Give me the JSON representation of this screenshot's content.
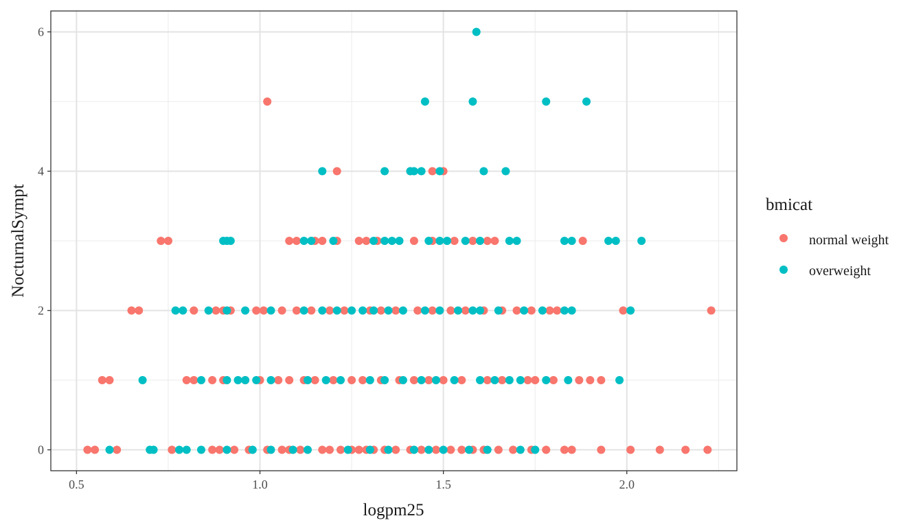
{
  "chart_data": {
    "type": "scatter",
    "xlabel": "logpm25",
    "ylabel": "NocturnalSympt",
    "xlim": [
      0.43,
      2.3
    ],
    "ylim": [
      -0.3,
      6.3
    ],
    "x_ticks": [
      0.5,
      1.0,
      1.5,
      2.0
    ],
    "x_tick_labels": [
      "0.5",
      "1.0",
      "1.5",
      "2.0"
    ],
    "y_ticks": [
      0,
      2,
      4,
      6
    ],
    "y_tick_labels": [
      "0",
      "2",
      "4",
      "6"
    ],
    "x_minor_grid": [
      0.75,
      1.25,
      1.75,
      2.25
    ],
    "y_minor_grid": [
      1,
      3,
      5
    ],
    "grid": true,
    "legend": {
      "title": "bmicat",
      "position": "right",
      "entries": [
        {
          "label": "normal weight",
          "color": "#F8766D"
        },
        {
          "label": "overweight",
          "color": "#00BFC4"
        }
      ]
    },
    "series": [
      {
        "name": "normal weight",
        "color": "#F8766D",
        "points": [
          [
            0.53,
            0
          ],
          [
            0.55,
            0
          ],
          [
            0.61,
            0
          ],
          [
            0.76,
            0
          ],
          [
            0.87,
            0
          ],
          [
            0.89,
            0
          ],
          [
            0.93,
            0
          ],
          [
            0.97,
            0
          ],
          [
            1.02,
            0
          ],
          [
            1.06,
            0
          ],
          [
            1.08,
            0
          ],
          [
            1.11,
            0
          ],
          [
            1.17,
            0
          ],
          [
            1.19,
            0
          ],
          [
            1.22,
            0
          ],
          [
            1.25,
            0
          ],
          [
            1.27,
            0
          ],
          [
            1.29,
            0
          ],
          [
            1.31,
            0
          ],
          [
            1.34,
            0
          ],
          [
            1.37,
            0
          ],
          [
            1.41,
            0
          ],
          [
            1.44,
            0
          ],
          [
            1.48,
            0
          ],
          [
            1.52,
            0
          ],
          [
            1.55,
            0
          ],
          [
            1.58,
            0
          ],
          [
            1.61,
            0
          ],
          [
            1.65,
            0
          ],
          [
            1.69,
            0
          ],
          [
            1.74,
            0
          ],
          [
            1.78,
            0
          ],
          [
            1.83,
            0
          ],
          [
            1.85,
            0
          ],
          [
            1.93,
            0
          ],
          [
            2.01,
            0
          ],
          [
            2.09,
            0
          ],
          [
            2.16,
            0
          ],
          [
            2.22,
            0
          ],
          [
            0.57,
            1
          ],
          [
            0.59,
            1
          ],
          [
            0.8,
            1
          ],
          [
            0.82,
            1
          ],
          [
            0.87,
            1
          ],
          [
            0.9,
            1
          ],
          [
            0.96,
            1
          ],
          [
            1.0,
            1
          ],
          [
            1.05,
            1
          ],
          [
            1.08,
            1
          ],
          [
            1.12,
            1
          ],
          [
            1.15,
            1
          ],
          [
            1.2,
            1
          ],
          [
            1.25,
            1
          ],
          [
            1.28,
            1
          ],
          [
            1.33,
            1
          ],
          [
            1.38,
            1
          ],
          [
            1.42,
            1
          ],
          [
            1.46,
            1
          ],
          [
            1.5,
            1
          ],
          [
            1.55,
            1
          ],
          [
            1.62,
            1
          ],
          [
            1.66,
            1
          ],
          [
            1.73,
            1
          ],
          [
            1.75,
            1
          ],
          [
            1.8,
            1
          ],
          [
            1.87,
            1
          ],
          [
            1.9,
            1
          ],
          [
            1.93,
            1
          ],
          [
            0.65,
            2
          ],
          [
            0.67,
            2
          ],
          [
            0.82,
            2
          ],
          [
            0.88,
            2
          ],
          [
            0.9,
            2
          ],
          [
            0.92,
            2
          ],
          [
            0.99,
            2
          ],
          [
            1.01,
            2
          ],
          [
            1.06,
            2
          ],
          [
            1.1,
            2
          ],
          [
            1.14,
            2
          ],
          [
            1.19,
            2
          ],
          [
            1.23,
            2
          ],
          [
            1.3,
            2
          ],
          [
            1.33,
            2
          ],
          [
            1.37,
            2
          ],
          [
            1.43,
            2
          ],
          [
            1.47,
            2
          ],
          [
            1.52,
            2
          ],
          [
            1.56,
            2
          ],
          [
            1.61,
            2
          ],
          [
            1.66,
            2
          ],
          [
            1.7,
            2
          ],
          [
            1.74,
            2
          ],
          [
            1.79,
            2
          ],
          [
            1.81,
            2
          ],
          [
            1.99,
            2
          ],
          [
            2.23,
            2
          ],
          [
            0.73,
            3
          ],
          [
            0.75,
            3
          ],
          [
            1.08,
            3
          ],
          [
            1.1,
            3
          ],
          [
            1.15,
            3
          ],
          [
            1.17,
            3
          ],
          [
            1.21,
            3
          ],
          [
            1.27,
            3
          ],
          [
            1.29,
            3
          ],
          [
            1.32,
            3
          ],
          [
            1.42,
            3
          ],
          [
            1.47,
            3
          ],
          [
            1.53,
            3
          ],
          [
            1.58,
            3
          ],
          [
            1.62,
            3
          ],
          [
            1.64,
            3
          ],
          [
            1.88,
            3
          ],
          [
            1.21,
            4
          ],
          [
            1.41,
            4
          ],
          [
            1.47,
            4
          ],
          [
            1.5,
            4
          ],
          [
            1.02,
            5
          ]
        ]
      },
      {
        "name": "overweight",
        "color": "#00BFC4",
        "points": [
          [
            0.59,
            0
          ],
          [
            0.7,
            0
          ],
          [
            0.71,
            0
          ],
          [
            0.78,
            0
          ],
          [
            0.8,
            0
          ],
          [
            0.84,
            0
          ],
          [
            0.91,
            0
          ],
          [
            0.98,
            0
          ],
          [
            1.03,
            0
          ],
          [
            1.09,
            0
          ],
          [
            1.13,
            0
          ],
          [
            1.24,
            0
          ],
          [
            1.3,
            0
          ],
          [
            1.35,
            0
          ],
          [
            1.42,
            0
          ],
          [
            1.46,
            0
          ],
          [
            1.5,
            0
          ],
          [
            1.57,
            0
          ],
          [
            1.62,
            0
          ],
          [
            1.71,
            0
          ],
          [
            1.75,
            0
          ],
          [
            0.68,
            1
          ],
          [
            0.84,
            1
          ],
          [
            0.91,
            1
          ],
          [
            0.94,
            1
          ],
          [
            0.96,
            1
          ],
          [
            0.99,
            1
          ],
          [
            1.03,
            1
          ],
          [
            1.13,
            1
          ],
          [
            1.18,
            1
          ],
          [
            1.22,
            1
          ],
          [
            1.3,
            1
          ],
          [
            1.34,
            1
          ],
          [
            1.39,
            1
          ],
          [
            1.44,
            1
          ],
          [
            1.48,
            1
          ],
          [
            1.53,
            1
          ],
          [
            1.6,
            1
          ],
          [
            1.64,
            1
          ],
          [
            1.68,
            1
          ],
          [
            1.71,
            1
          ],
          [
            1.78,
            1
          ],
          [
            1.84,
            1
          ],
          [
            1.98,
            1
          ],
          [
            0.77,
            2
          ],
          [
            0.79,
            2
          ],
          [
            0.86,
            2
          ],
          [
            0.91,
            2
          ],
          [
            0.96,
            2
          ],
          [
            1.03,
            2
          ],
          [
            1.12,
            2
          ],
          [
            1.17,
            2
          ],
          [
            1.21,
            2
          ],
          [
            1.25,
            2
          ],
          [
            1.28,
            2
          ],
          [
            1.31,
            2
          ],
          [
            1.35,
            2
          ],
          [
            1.39,
            2
          ],
          [
            1.45,
            2
          ],
          [
            1.49,
            2
          ],
          [
            1.54,
            2
          ],
          [
            1.58,
            2
          ],
          [
            1.6,
            2
          ],
          [
            1.65,
            2
          ],
          [
            1.72,
            2
          ],
          [
            1.77,
            2
          ],
          [
            1.83,
            2
          ],
          [
            1.85,
            2
          ],
          [
            2.01,
            2
          ],
          [
            0.9,
            3
          ],
          [
            0.91,
            3
          ],
          [
            0.92,
            3
          ],
          [
            1.12,
            3
          ],
          [
            1.14,
            3
          ],
          [
            1.2,
            3
          ],
          [
            1.31,
            3
          ],
          [
            1.34,
            3
          ],
          [
            1.36,
            3
          ],
          [
            1.38,
            3
          ],
          [
            1.46,
            3
          ],
          [
            1.49,
            3
          ],
          [
            1.51,
            3
          ],
          [
            1.56,
            3
          ],
          [
            1.6,
            3
          ],
          [
            1.68,
            3
          ],
          [
            1.7,
            3
          ],
          [
            1.83,
            3
          ],
          [
            1.85,
            3
          ],
          [
            1.95,
            3
          ],
          [
            1.97,
            3
          ],
          [
            2.04,
            3
          ],
          [
            1.17,
            4
          ],
          [
            1.34,
            4
          ],
          [
            1.41,
            4
          ],
          [
            1.42,
            4
          ],
          [
            1.44,
            4
          ],
          [
            1.49,
            4
          ],
          [
            1.61,
            4
          ],
          [
            1.67,
            4
          ],
          [
            1.45,
            5
          ],
          [
            1.58,
            5
          ],
          [
            1.78,
            5
          ],
          [
            1.89,
            5
          ],
          [
            1.59,
            6
          ]
        ]
      }
    ]
  }
}
